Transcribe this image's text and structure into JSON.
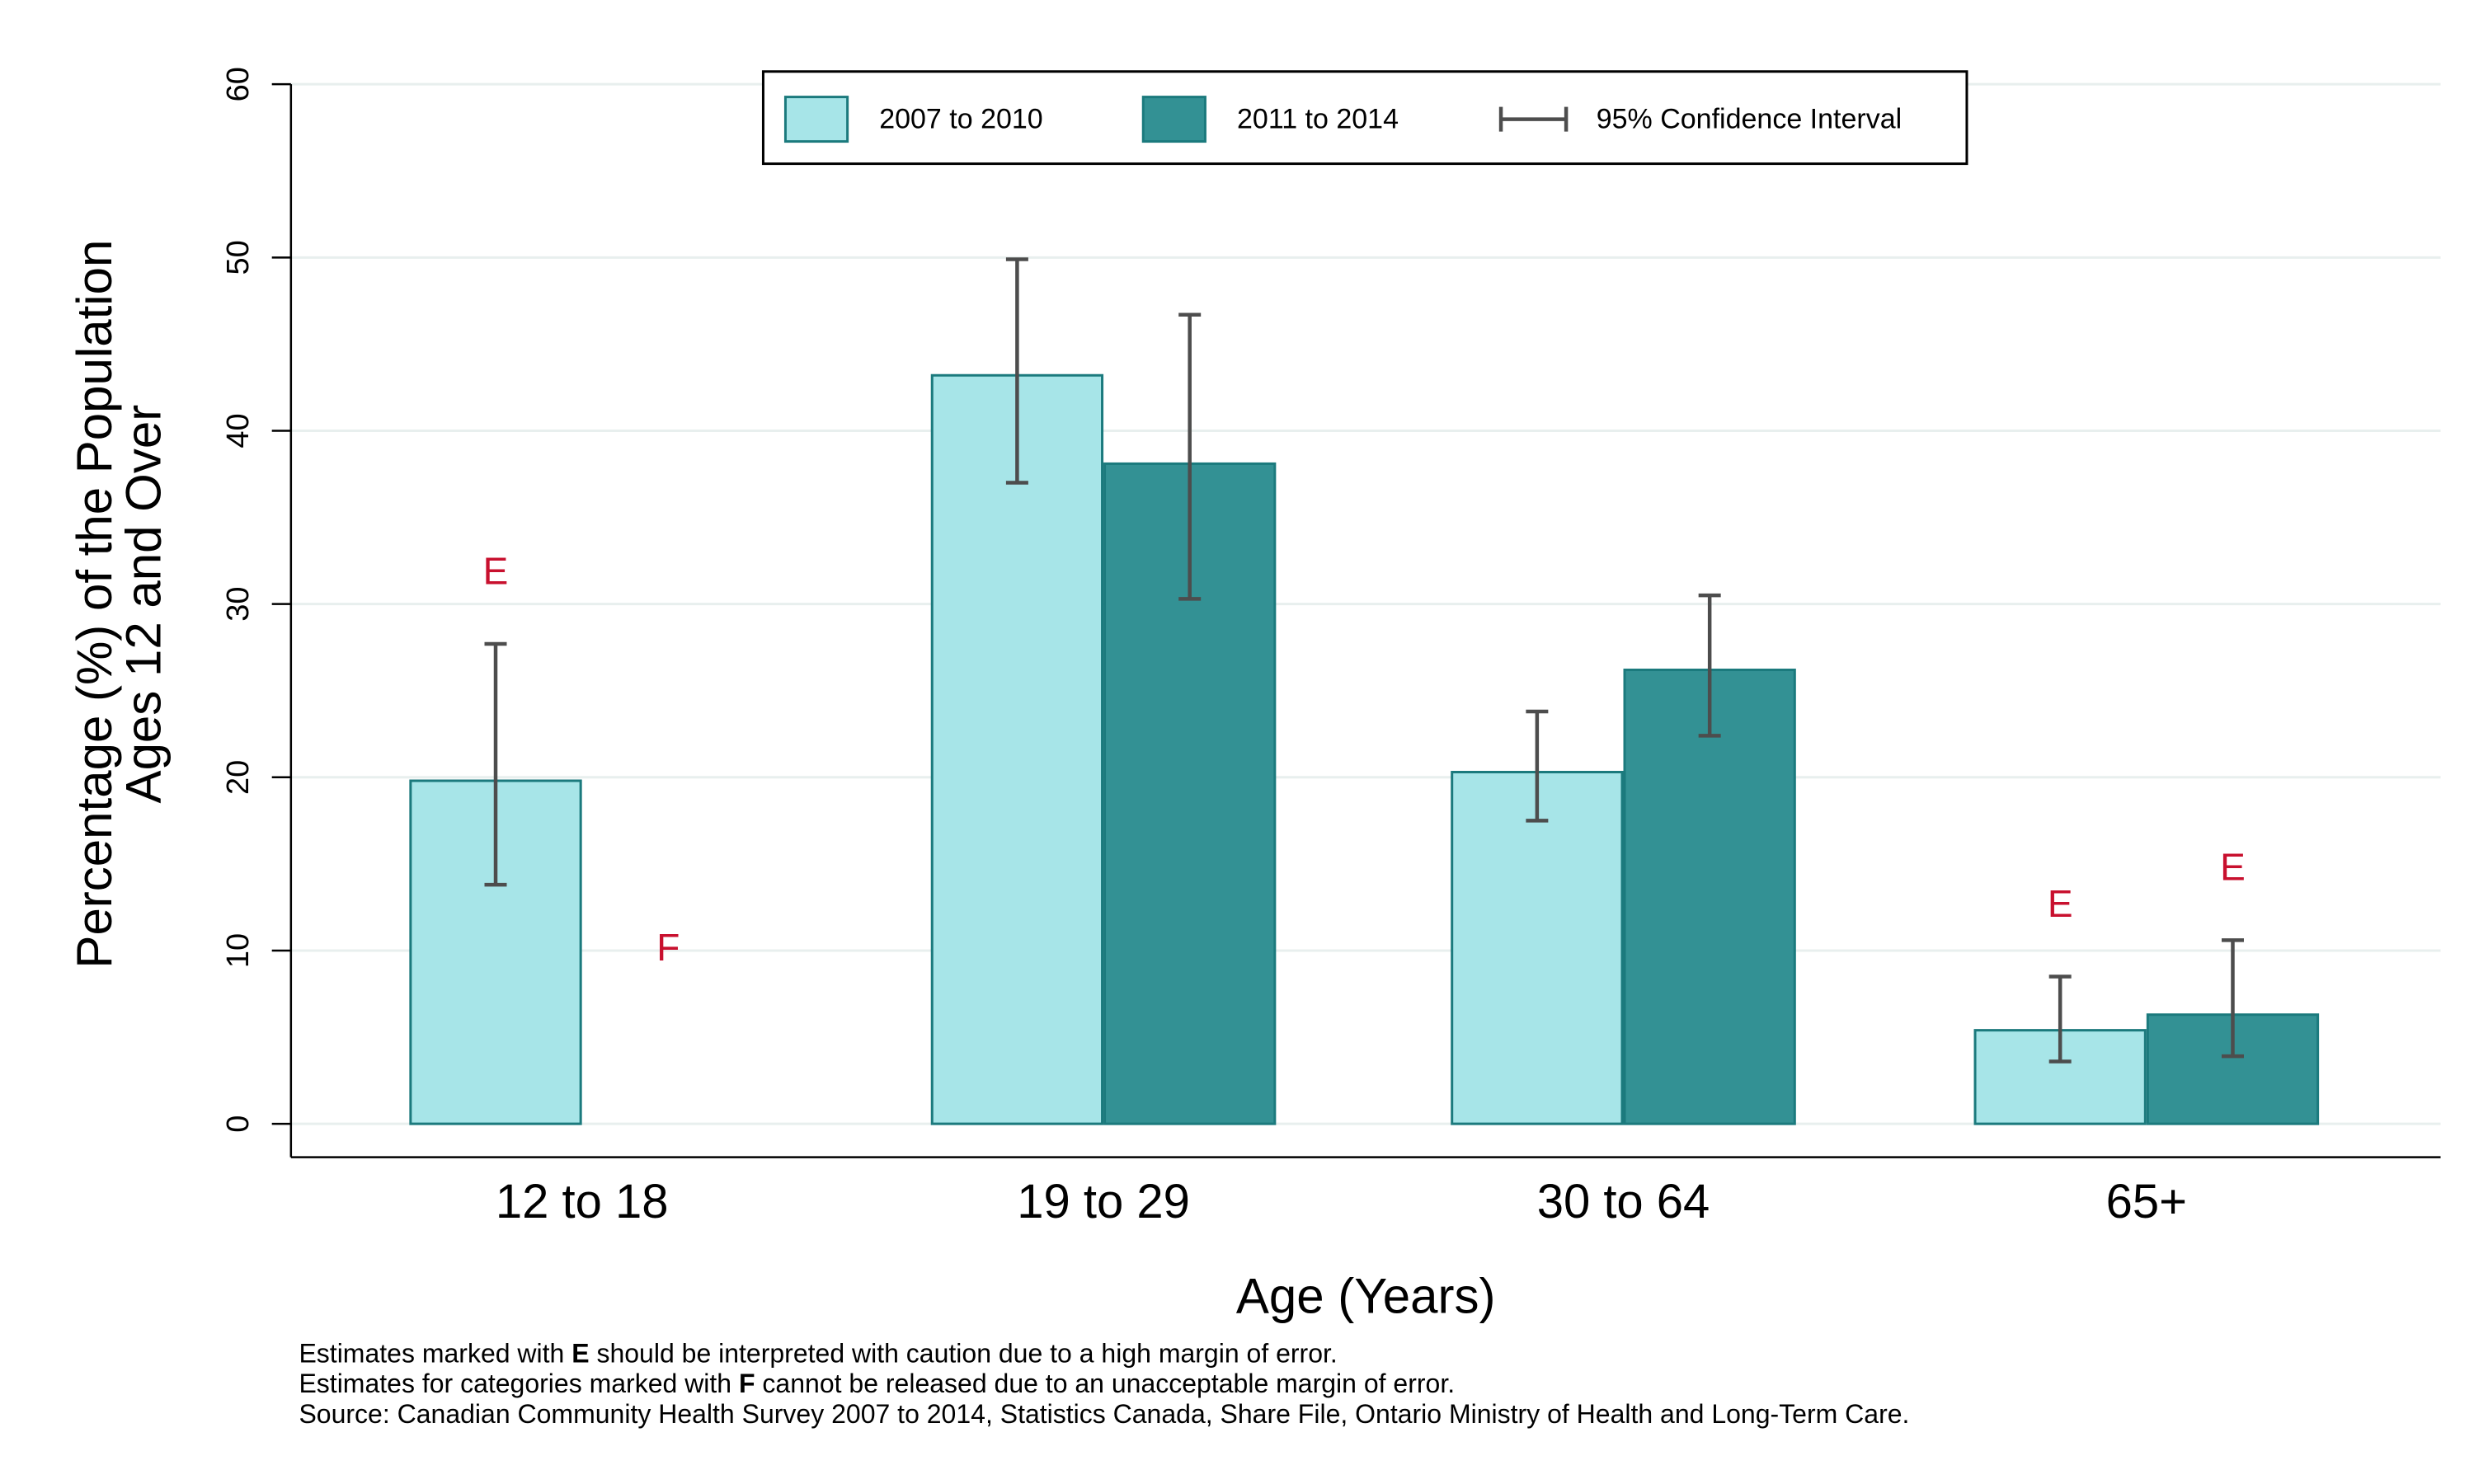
{
  "chart_data": {
    "type": "bar",
    "title": "",
    "xlabel": "Age (Years)",
    "ylabel_lines": [
      "Percentage (%) of the Population",
      "Ages 12 and Over"
    ],
    "ylim": [
      0,
      60
    ],
    "yticks": [
      0,
      10,
      20,
      30,
      40,
      50,
      60
    ],
    "grid": true,
    "legend_position": "top-center",
    "categories": [
      "12 to 18",
      "19 to 29",
      "30 to 64",
      "65+"
    ],
    "series": [
      {
        "name": "2007 to 2010",
        "color": "#a7e5e8",
        "values": [
          19.8,
          43.2,
          20.3,
          5.4
        ],
        "ci_low": [
          13.8,
          37.0,
          17.5,
          3.6
        ],
        "ci_high": [
          27.7,
          49.9,
          23.8,
          8.5
        ],
        "flags": [
          "E",
          "",
          "",
          "E"
        ]
      },
      {
        "name": "2011 to 2014",
        "color": "#339194",
        "values": [
          null,
          38.1,
          26.2,
          6.3
        ],
        "ci_low": [
          null,
          30.3,
          22.4,
          3.9
        ],
        "ci_high": [
          null,
          46.7,
          30.5,
          10.6
        ],
        "flags": [
          "F",
          "",
          "",
          "E"
        ]
      }
    ],
    "ci_legend_label": "95% Confidence Interval",
    "flag_color": "#c8102e",
    "bar_edge_color": "#1b7a7d",
    "ci_color": "#4d4d4d",
    "grid_color": "#e8efee",
    "notes": [
      {
        "before": "Estimates marked with ",
        "bold": "E",
        "after": " should be interpreted with caution due to a high margin of error."
      },
      {
        "before": "Estimates for categories marked with ",
        "bold": "F",
        "after": " cannot be released due to an unacceptable margin of error."
      },
      {
        "before": "Source: Canadian Community Health Survey 2007 to 2014, Statistics Canada, Share File, Ontario Ministry of Health and Long-Term Care.",
        "bold": "",
        "after": ""
      }
    ]
  }
}
